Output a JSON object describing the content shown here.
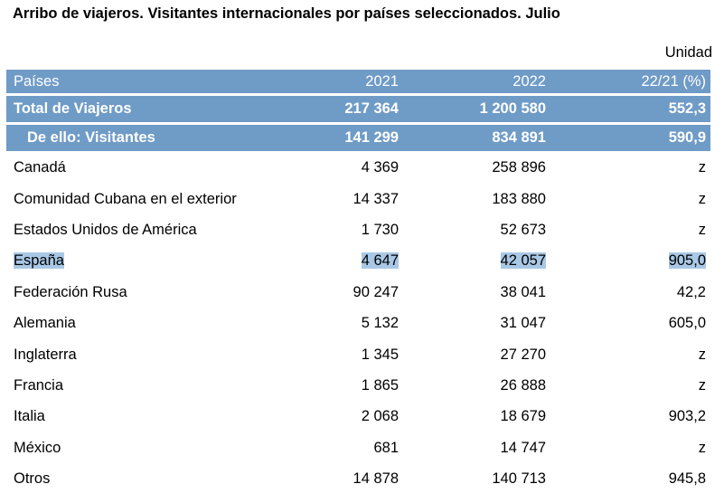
{
  "title": "Arribo de viajeros. Visitantes internacionales por países seleccionados. Julio",
  "unit": "Unidad",
  "header": {
    "col0": "Países",
    "col1": "2021",
    "col2": "2022",
    "col3": "22/21 (%)"
  },
  "total": {
    "label": "Total de Viajeros",
    "v2021": "217 364",
    "v2022": "1 200 580",
    "pct": "552,3"
  },
  "visitantes": {
    "label": "De ello: Visitantes",
    "v2021": "141 299",
    "v2022": "834 891",
    "pct": "590,9"
  },
  "rows": [
    {
      "country": "Canadá",
      "v2021": "4 369",
      "v2022": "258 896",
      "pct": "z"
    },
    {
      "country": "Comunidad Cubana en el exterior",
      "v2021": "14 337",
      "v2022": "183 880",
      "pct": "z"
    },
    {
      "country": "Estados Unidos de América",
      "v2021": "1 730",
      "v2022": "52 673",
      "pct": "z"
    },
    {
      "country": "España",
      "v2021": "4 647",
      "v2022": "42 057",
      "pct": "905,0"
    },
    {
      "country": "Federación Rusa",
      "v2021": "90 247",
      "v2022": "38 041",
      "pct": "42,2"
    },
    {
      "country": "Alemania",
      "v2021": "5 132",
      "v2022": "31 047",
      "pct": "605,0"
    },
    {
      "country": "Inglaterra",
      "v2021": "1 345",
      "v2022": "27 270",
      "pct": "z"
    },
    {
      "country": "Francia",
      "v2021": "1 865",
      "v2022": "26 888",
      "pct": "z"
    },
    {
      "country": "Italia",
      "v2021": "2 068",
      "v2022": "18 679",
      "pct": "903,2"
    },
    {
      "country": "México",
      "v2021": "681",
      "v2022": "14 747",
      "pct": "z"
    },
    {
      "country": "Otros",
      "v2021": "14 878",
      "v2022": "140 713",
      "pct": "945,8"
    }
  ]
}
